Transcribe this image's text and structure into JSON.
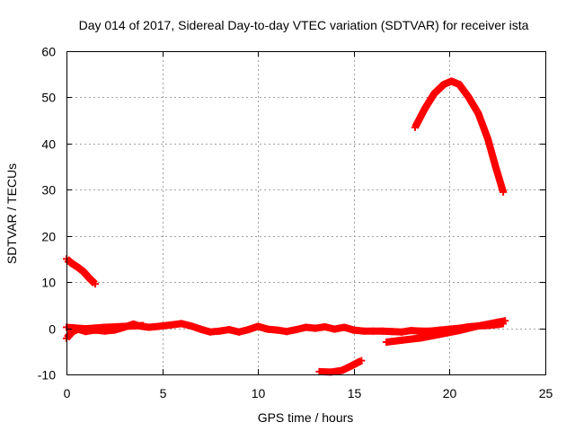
{
  "chart_data": {
    "type": "scatter",
    "title": "Day 014 of 2017, Sidereal Day-to-day VTEC variation (SDTVAR) for receiver ista",
    "xlabel": "GPS time / hours",
    "ylabel": "SDTVAR / TECUs",
    "xlim": [
      0,
      25
    ],
    "ylim": [
      -10,
      60
    ],
    "xticks": [
      0,
      5,
      10,
      15,
      20,
      25
    ],
    "yticks": [
      -10,
      0,
      10,
      20,
      30,
      40,
      50,
      60
    ],
    "grid": true,
    "legend": "none",
    "marker": "plus",
    "color": "#ff0000",
    "series": [
      {
        "name": "arc-1",
        "points": [
          [
            0.0,
            15.0
          ],
          [
            0.3,
            14.0
          ],
          [
            0.6,
            13.2
          ],
          [
            0.9,
            12.2
          ],
          [
            1.2,
            10.8
          ],
          [
            1.5,
            9.6
          ]
        ]
      },
      {
        "name": "arc-2",
        "points": [
          [
            0.0,
            -2.2
          ],
          [
            0.3,
            -0.8
          ],
          [
            0.6,
            -0.2
          ],
          [
            1.0,
            -0.7
          ],
          [
            1.5,
            -0.4
          ],
          [
            2.0,
            -0.6
          ],
          [
            2.5,
            -0.4
          ],
          [
            3.0,
            0.2
          ],
          [
            3.5,
            0.9
          ],
          [
            3.8,
            0.5
          ],
          [
            4.3,
            0.2
          ],
          [
            4.8,
            0.4
          ],
          [
            5.2,
            0.6
          ],
          [
            5.6,
            0.8
          ],
          [
            6.0,
            1.0
          ],
          [
            6.5,
            0.5
          ],
          [
            7.0,
            -0.2
          ],
          [
            7.5,
            -0.8
          ],
          [
            8.0,
            -0.6
          ],
          [
            8.5,
            -0.3
          ],
          [
            9.0,
            -0.8
          ],
          [
            9.5,
            -0.3
          ],
          [
            10.0,
            0.4
          ],
          [
            10.5,
            -0.2
          ],
          [
            11.0,
            -0.4
          ],
          [
            11.5,
            -0.7
          ],
          [
            12.0,
            -0.3
          ],
          [
            12.5,
            0.2
          ],
          [
            13.0,
            0.0
          ],
          [
            13.5,
            0.3
          ],
          [
            14.0,
            -0.2
          ],
          [
            14.5,
            0.2
          ],
          [
            15.0,
            -0.4
          ],
          [
            15.5,
            -0.6
          ],
          [
            16.0,
            -0.6
          ],
          [
            16.5,
            -0.6
          ],
          [
            17.0,
            -0.7
          ],
          [
            17.5,
            -0.8
          ],
          [
            18.0,
            -0.5
          ],
          [
            18.5,
            -0.6
          ],
          [
            19.0,
            -0.6
          ],
          [
            19.5,
            -0.4
          ],
          [
            20.0,
            -0.2
          ],
          [
            20.5,
            0.0
          ],
          [
            21.0,
            0.3
          ],
          [
            21.5,
            0.5
          ],
          [
            22.0,
            0.6
          ],
          [
            22.5,
            0.8
          ],
          [
            22.8,
            1.0
          ]
        ]
      },
      {
        "name": "arc-3",
        "points": [
          [
            0.0,
            0.2
          ],
          [
            1.0,
            -0.1
          ],
          [
            2.0,
            0.2
          ],
          [
            3.0,
            0.4
          ],
          [
            4.0,
            0.6
          ]
        ]
      },
      {
        "name": "arc-4",
        "points": [
          [
            16.7,
            -3.0
          ],
          [
            17.5,
            -2.6
          ],
          [
            18.5,
            -2.1
          ],
          [
            19.5,
            -1.3
          ],
          [
            20.5,
            -0.5
          ],
          [
            21.5,
            0.5
          ],
          [
            22.5,
            1.3
          ],
          [
            22.9,
            1.6
          ]
        ]
      },
      {
        "name": "arc-5",
        "points": [
          [
            13.2,
            -9.4
          ],
          [
            13.8,
            -9.5
          ],
          [
            14.4,
            -9.1
          ],
          [
            14.9,
            -8.1
          ],
          [
            15.4,
            -7.0
          ]
        ]
      },
      {
        "name": "arc-6",
        "points": [
          [
            18.2,
            43.5
          ],
          [
            18.7,
            47.5
          ],
          [
            19.2,
            50.8
          ],
          [
            19.7,
            52.8
          ],
          [
            20.1,
            53.5
          ],
          [
            20.5,
            52.8
          ],
          [
            21.0,
            50.0
          ],
          [
            21.5,
            46.5
          ],
          [
            22.0,
            41.0
          ],
          [
            22.4,
            35.0
          ],
          [
            22.8,
            29.5
          ]
        ]
      }
    ]
  }
}
